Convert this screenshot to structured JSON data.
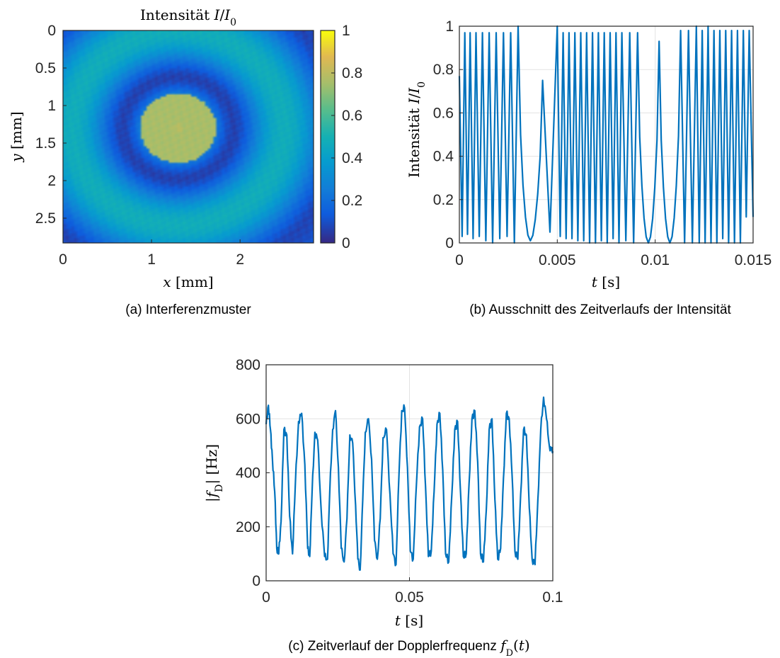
{
  "chart_data": [
    {
      "type": "heatmap",
      "panel": "a",
      "title": "Intensität I/I₀",
      "xlabel": "x [mm]",
      "ylabel": "y [mm]",
      "xlim": [
        0,
        2.83
      ],
      "ylim": [
        0,
        2.83
      ],
      "x_ticks": [
        "0",
        "1",
        "2"
      ],
      "y_ticks": [
        "0",
        "0.5",
        "1",
        "1.5",
        "2",
        "2.5"
      ],
      "colorbar": {
        "min": 0,
        "max": 1,
        "ticks": [
          "0",
          "0.2",
          "0.4",
          "0.6",
          "0.8",
          "1"
        ],
        "colormap": "parula"
      },
      "pattern": {
        "center_x_mm": 1.3,
        "center_y_mm": 1.3,
        "ring_radii_mm": [
          0,
          0.85,
          1.5,
          2.1
        ],
        "peak_intensity": 0.82,
        "ring_intensity": [
          0.82,
          0.5,
          0.4,
          0.3
        ],
        "dark_radii_mm": [
          0.56,
          1.22,
          1.82
        ]
      },
      "caption": "(a) Interferenzmuster"
    },
    {
      "type": "line",
      "panel": "b",
      "xlabel": "t [s]",
      "ylabel": "Intensität I/I₀",
      "xlim": [
        0,
        0.015
      ],
      "ylim": [
        0,
        1
      ],
      "x_ticks": [
        "0",
        "0.005",
        "0.01",
        "0.015"
      ],
      "y_ticks": [
        "0",
        "0.2",
        "0.4",
        "0.6",
        "0.8",
        "1"
      ],
      "grid": true,
      "color": "#0072BD",
      "series": [
        {
          "x": [
            0,
            0.00028,
            0.00055,
            0.00085,
            0.00118,
            0.00152,
            0.00188,
            0.00225,
            0.00262,
            0.003,
            0.00425,
            0.005,
            0.0053,
            0.0056,
            0.0059,
            0.0062,
            0.0065,
            0.0068,
            0.0071,
            0.0074,
            0.0077,
            0.008,
            0.0083,
            0.0087,
            0.0091,
            0.0102,
            0.0113,
            0.0117,
            0.0121,
            0.0124,
            0.0127,
            0.013,
            0.0133,
            0.0136,
            0.0139,
            0.0142,
            0.0145,
            0.0148
          ],
          "y": [
            0.77,
            0.97,
            0.97,
            0.97,
            0.97,
            0.97,
            0.97,
            0.97,
            0.97,
            1.0,
            0.75,
            1.0,
            0.97,
            0.97,
            0.97,
            0.97,
            0.97,
            0.97,
            0.97,
            0.97,
            0.97,
            0.97,
            0.97,
            0.97,
            0.97,
            0.93,
            0.98,
            0.98,
            1.0,
            0.98,
            1.0,
            0.98,
            0.98,
            0.98,
            0.98,
            0.98,
            0.98,
            0.98
          ],
          "troughs": [
            0.03,
            0.04,
            0.02,
            0.03,
            0.01,
            0.0,
            0.02,
            0.03,
            0.0,
            0.01,
            0.05,
            0.03,
            0.02,
            0.02,
            0.01,
            0.01,
            0.0,
            0.0,
            0.01,
            0.0,
            0.02,
            0.0,
            0.01,
            0.0,
            0.0,
            0.0,
            0.0,
            0.0,
            0.0,
            0.0,
            0.0,
            0.0,
            0.02,
            0.0,
            0.0,
            0.0,
            0.12
          ]
        }
      ],
      "caption": "(b) Ausschnitt des Zeitverlaufs der Intensität"
    },
    {
      "type": "line",
      "panel": "c",
      "xlabel": "t [s]",
      "ylabel": "|f_D| [Hz]",
      "xlim": [
        0,
        0.1
      ],
      "ylim": [
        0,
        800
      ],
      "x_ticks": [
        "0",
        "0.05",
        "0.1"
      ],
      "y_ticks": [
        "0",
        "200",
        "400",
        "600",
        "800"
      ],
      "grid": true,
      "color": "#0072BD",
      "series": [
        {
          "x": [
            0,
            0.0008,
            0.0015,
            0.0022,
            0.003,
            0.0037,
            0.0044,
            0.0052,
            0.0062,
            0.0072,
            0.0082,
            0.0092,
            0.0102,
            0.0113,
            0.0124,
            0.0135,
            0.0145,
            0.0152,
            0.016,
            0.017,
            0.018,
            0.0192,
            0.0204,
            0.0214,
            0.0222,
            0.0232,
            0.0242,
            0.0252,
            0.0262,
            0.0272,
            0.0282,
            0.0292,
            0.0302,
            0.0312,
            0.032,
            0.0328,
            0.0337,
            0.0346,
            0.0357,
            0.0368,
            0.0378,
            0.0388,
            0.0398,
            0.0408,
            0.042,
            0.0432,
            0.0443,
            0.0453,
            0.0463,
            0.0473,
            0.0483,
            0.0493,
            0.0503,
            0.0513,
            0.0524,
            0.0535,
            0.0546,
            0.0556,
            0.0566,
            0.0576,
            0.0586,
            0.0596,
            0.0606,
            0.0616,
            0.0626,
            0.0637,
            0.0648,
            0.0658,
            0.0668,
            0.0678,
            0.0688,
            0.0698,
            0.0708,
            0.0718,
            0.0728,
            0.0738,
            0.0748,
            0.0758,
            0.0768,
            0.0778,
            0.0788,
            0.0798,
            0.0808,
            0.0818,
            0.0828,
            0.0838,
            0.0848,
            0.0858,
            0.0868,
            0.0878,
            0.0888,
            0.0898,
            0.0908,
            0.0918,
            0.0928,
            0.0938,
            0.0948,
            0.0958,
            0.0968,
            0.0978,
            0.0988,
            0.0997,
            0.1
          ],
          "y": [
            580,
            650,
            560,
            450,
            330,
            120,
            100,
            220,
            560,
            540,
            240,
            100,
            360,
            590,
            620,
            430,
            120,
            90,
            320,
            550,
            520,
            260,
            90,
            80,
            330,
            560,
            630,
            420,
            120,
            70,
            230,
            540,
            510,
            280,
            80,
            40,
            300,
            550,
            600,
            450,
            150,
            80,
            230,
            530,
            560,
            320,
            100,
            60,
            380,
            630,
            640,
            420,
            110,
            80,
            350,
            570,
            600,
            350,
            90,
            110,
            330,
            580,
            620,
            410,
            100,
            70,
            320,
            560,
            590,
            330,
            90,
            100,
            360,
            600,
            630,
            440,
            100,
            70,
            260,
            560,
            600,
            300,
            80,
            120,
            380,
            620,
            600,
            390,
            110,
            80,
            320,
            560,
            540,
            270,
            80,
            60,
            300,
            560,
            680,
            600,
            500,
            480,
            480
          ]
        }
      ],
      "caption_main": "(c) Zeitverlauf der Dopplerfrequenz",
      "caption_math": "f_D(t)"
    }
  ]
}
